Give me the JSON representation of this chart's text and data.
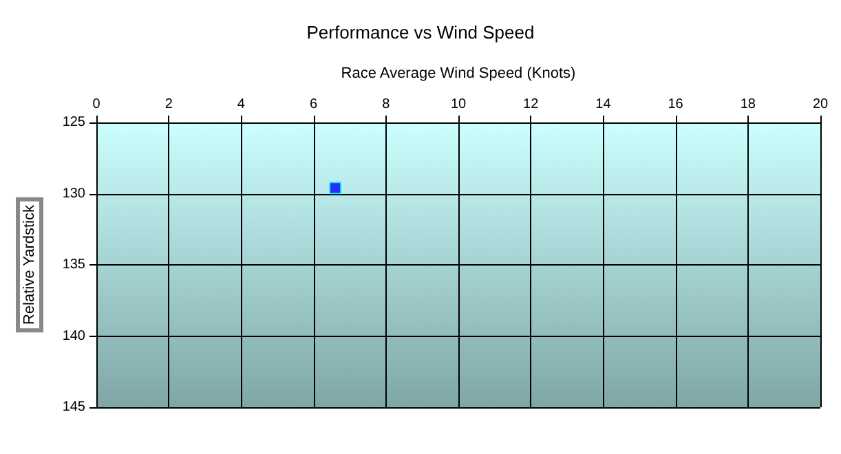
{
  "chart_data": {
    "type": "scatter",
    "title": "Performance vs Wind Speed",
    "xlabel": "Race Average Wind Speed (Knots)",
    "ylabel": "Relative Yardstick",
    "series": [
      {
        "color": "#0000ff",
        "x": [
          6.6
        ],
        "values": [
          129.6
        ]
      }
    ],
    "xlim": [
      0,
      20
    ],
    "xticks": [
      0,
      2,
      4,
      6,
      8,
      10,
      12,
      14,
      16,
      18,
      20
    ],
    "ylim": [
      145,
      125
    ],
    "yticks": [
      125,
      130,
      135,
      140,
      145
    ],
    "grid": true,
    "marker": "square"
  }
}
